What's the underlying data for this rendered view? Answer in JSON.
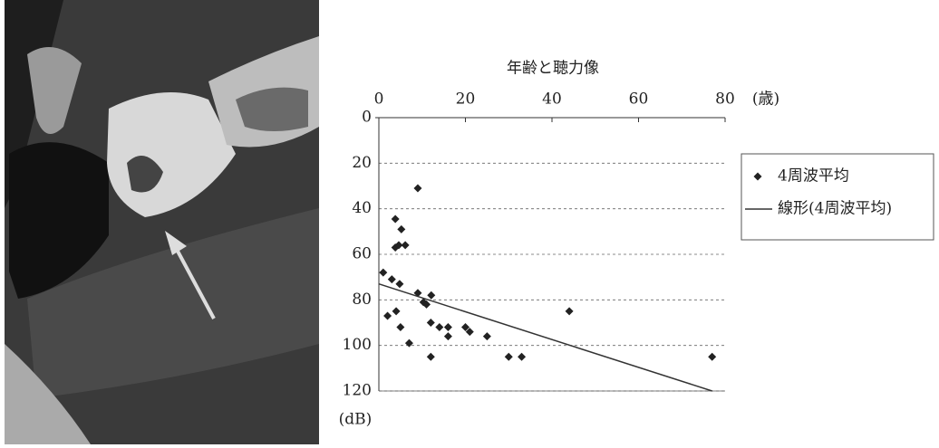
{
  "chart_data": {
    "type": "scatter",
    "title": "年齢と聴力像",
    "x_label": "(歳)",
    "y_label": "(dB)",
    "xlim": [
      0,
      80
    ],
    "xticks": [
      0,
      20,
      40,
      60,
      80
    ],
    "x_axis_position": "top",
    "ylim": [
      0,
      120
    ],
    "yticks": [
      0,
      20,
      40,
      60,
      80,
      100,
      120
    ],
    "y_inverted": true,
    "grid": true,
    "legend": "right",
    "series": [
      {
        "name": "4周波平均",
        "color": "#222222",
        "marker": "diamond",
        "x": [
          1,
          3,
          2,
          3.8,
          5.2,
          3.8,
          4.6,
          6.1,
          4.8,
          4,
          5,
          7,
          9,
          9,
          10.3,
          11,
          12.1,
          12,
          12,
          14,
          16,
          16,
          20,
          21,
          25,
          30,
          33,
          44,
          77
        ],
        "values": [
          68,
          71,
          87,
          44.5,
          49,
          57,
          56,
          56,
          73,
          85,
          92,
          99,
          31,
          77,
          81,
          82,
          78,
          90,
          105,
          92,
          92,
          96,
          92,
          94,
          96,
          105,
          105,
          85,
          105
        ]
      },
      {
        "name": "線形(4周波平均)",
        "color": "#333333",
        "type": "line",
        "x": [
          0,
          77
        ],
        "values": [
          73,
          120
        ]
      }
    ]
  }
}
